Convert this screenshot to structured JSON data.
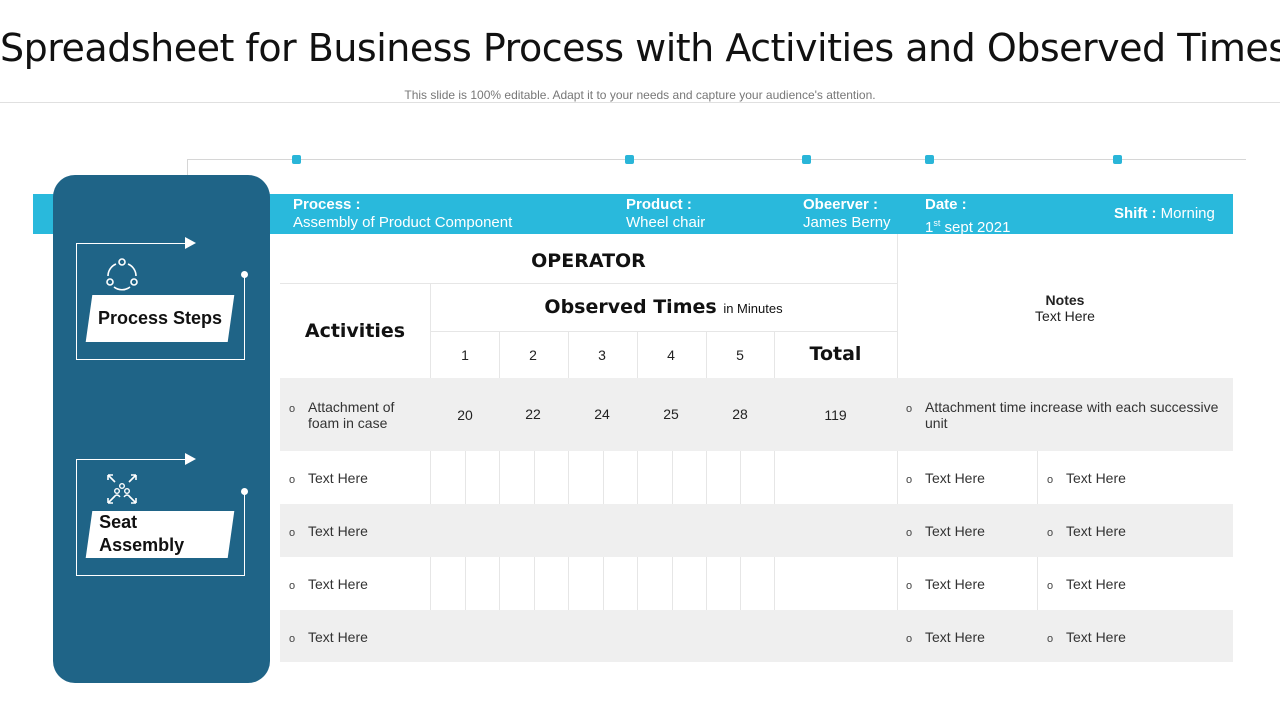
{
  "title": "Spreadsheet for Business Process with Activities and Observed Times",
  "subtitle": "This slide is 100% editable. Adapt it to your needs and capture your audience's attention.",
  "header_band": {
    "process_label": "Process :",
    "process_value": "Assembly of Product Component",
    "product_label": "Product :",
    "product_value": "Wheel chair",
    "observer_label": "Obeerver :",
    "observer_value": "James Berny",
    "date_label": "Date :",
    "date_day": "1",
    "date_sup": "st",
    "date_rest": " sept 2021",
    "shift_label": "Shift :",
    "shift_value": " Morning"
  },
  "sidebar": {
    "steps": [
      {
        "label": "Process Steps",
        "icon": "cycle-icon"
      },
      {
        "label": "Seat Assembly",
        "icon": "group-arrows-icon"
      }
    ]
  },
  "table": {
    "operator": "OPERATOR",
    "activities": "Activities",
    "observed_times": "Observed Times",
    "observed_unit": "in Minutes",
    "columns": [
      "1",
      "2",
      "3",
      "4",
      "5"
    ],
    "total": "Total",
    "notes_title": "Notes",
    "notes_sub": "Text Here",
    "rows": [
      {
        "activity": "Attachment of foam in case",
        "values": [
          "20",
          "22",
          "24",
          "25",
          "28"
        ],
        "total": "119",
        "note": "Attachment time increase with each successive unit"
      },
      {
        "activity": "Text Here",
        "note1": "Text Here",
        "note2": "Text Here"
      },
      {
        "activity": "Text Here",
        "note1": "Text Here",
        "note2": "Text Here"
      },
      {
        "activity": "Text Here",
        "note1": "Text Here",
        "note2": "Text Here"
      },
      {
        "activity": "Text Here",
        "note1": "Text Here",
        "note2": "Text Here"
      }
    ]
  },
  "colors": {
    "accent": "#29b9dc",
    "sidebar": "#1f6487",
    "row_alt": "#efefef"
  }
}
